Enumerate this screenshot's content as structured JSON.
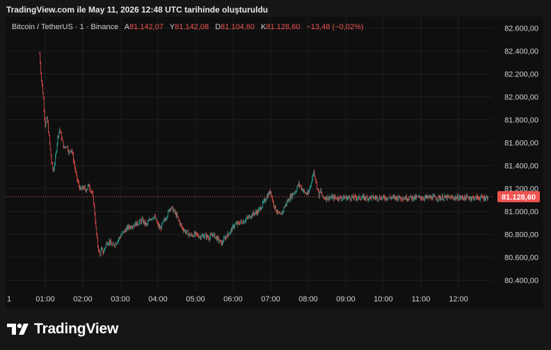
{
  "header": {
    "caption": "TradingView.com ile May 11, 2026 12:48 UTC tarihinde oluşturuldu"
  },
  "legend": {
    "symbol": "Bitcoin / TetherUS · 1 · Binance",
    "open_label": "A",
    "open": "81.142,07",
    "high_label": "Y",
    "high": "81.142,08",
    "low_label": "D",
    "low": "81.104,60",
    "close_label": "K",
    "close": "81.128,60",
    "change": "−13,48 (−0,02%)"
  },
  "footer": {
    "brand": "TradingView",
    "logo_icon": "tradingview-logo-icon"
  },
  "colors": {
    "up": "#26a69a",
    "down": "#ef5350",
    "price_line": "#ef5350",
    "background": "#0f0f0f",
    "grid": "#1e1e1e",
    "axis_text": "#d1d4dc"
  },
  "chart_data": {
    "type": "candlestick",
    "title": "",
    "xlabel": "",
    "ylabel": "",
    "ylim": [
      80300,
      82700
    ],
    "x_start": "00:51",
    "x_end": "12:47",
    "x_ticks": [
      "1",
      "01:00",
      "02:00",
      "03:00",
      "04:00",
      "05:00",
      "06:00",
      "07:00",
      "08:00",
      "09:00",
      "10:00",
      "11:00",
      "12:00"
    ],
    "y_ticks": [
      "80.400,00",
      "80.600,00",
      "80.800,00",
      "81.000,00",
      "81.200,00",
      "81.400,00",
      "81.600,00",
      "81.800,00",
      "82.000,00",
      "82.200,00",
      "82.400,00",
      "82.600,00"
    ],
    "last_price": 81128.6,
    "last_price_label": "81.128,60",
    "grid": true,
    "close_path": [
      [
        "00:51",
        82380
      ],
      [
        "00:54",
        82150
      ],
      [
        "00:57",
        81980
      ],
      [
        "01:00",
        81750
      ],
      [
        "01:03",
        81820
      ],
      [
        "01:06",
        81650
      ],
      [
        "01:10",
        81430
      ],
      [
        "01:13",
        81350
      ],
      [
        "01:17",
        81500
      ],
      [
        "01:20",
        81650
      ],
      [
        "01:23",
        81720
      ],
      [
        "01:27",
        81620
      ],
      [
        "01:30",
        81550
      ],
      [
        "01:34",
        81580
      ],
      [
        "01:38",
        81510
      ],
      [
        "01:42",
        81550
      ],
      [
        "01:46",
        81420
      ],
      [
        "01:50",
        81300
      ],
      [
        "01:53",
        81240
      ],
      [
        "01:57",
        81180
      ],
      [
        "02:00",
        81210
      ],
      [
        "02:05",
        81190
      ],
      [
        "02:10",
        81230
      ],
      [
        "02:15",
        81150
      ],
      [
        "02:18",
        81050
      ],
      [
        "02:21",
        80850
      ],
      [
        "02:24",
        80700
      ],
      [
        "02:27",
        80620
      ],
      [
        "02:30",
        80670
      ],
      [
        "02:33",
        80640
      ],
      [
        "02:37",
        80720
      ],
      [
        "02:42",
        80740
      ],
      [
        "02:47",
        80700
      ],
      [
        "02:52",
        80720
      ],
      [
        "02:57",
        80760
      ],
      [
        "03:05",
        80820
      ],
      [
        "03:12",
        80860
      ],
      [
        "03:20",
        80880
      ],
      [
        "03:28",
        80900
      ],
      [
        "03:35",
        80920
      ],
      [
        "03:42",
        80880
      ],
      [
        "03:48",
        80940
      ],
      [
        "03:54",
        80960
      ],
      [
        "04:00",
        80880
      ],
      [
        "04:04",
        80850
      ],
      [
        "04:08",
        80900
      ],
      [
        "04:14",
        80960
      ],
      [
        "04:20",
        81040
      ],
      [
        "04:26",
        81000
      ],
      [
        "04:32",
        80940
      ],
      [
        "04:38",
        80860
      ],
      [
        "04:45",
        80820
      ],
      [
        "04:52",
        80790
      ],
      [
        "05:00",
        80800
      ],
      [
        "05:08",
        80780
      ],
      [
        "05:15",
        80790
      ],
      [
        "05:22",
        80770
      ],
      [
        "05:28",
        80800
      ],
      [
        "05:35",
        80760
      ],
      [
        "05:42",
        80720
      ],
      [
        "05:48",
        80780
      ],
      [
        "05:55",
        80820
      ],
      [
        "06:02",
        80880
      ],
      [
        "06:10",
        80900
      ],
      [
        "06:18",
        80920
      ],
      [
        "06:25",
        80950
      ],
      [
        "06:32",
        80980
      ],
      [
        "06:40",
        81000
      ],
      [
        "06:47",
        81060
      ],
      [
        "06:55",
        81140
      ],
      [
        "07:00",
        81180
      ],
      [
        "07:04",
        81080
      ],
      [
        "07:08",
        81020
      ],
      [
        "07:12",
        80980
      ],
      [
        "07:16",
        80960
      ],
      [
        "07:22",
        81040
      ],
      [
        "07:28",
        81100
      ],
      [
        "07:35",
        81150
      ],
      [
        "07:40",
        81180
      ],
      [
        "07:45",
        81240
      ],
      [
        "07:50",
        81200
      ],
      [
        "07:55",
        81160
      ],
      [
        "08:00",
        81150
      ],
      [
        "08:04",
        81240
      ],
      [
        "08:09",
        81350
      ],
      [
        "08:13",
        81250
      ],
      [
        "08:17",
        81140
      ],
      [
        "08:20",
        81180
      ],
      [
        "08:23",
        81120
      ]
    ]
  }
}
